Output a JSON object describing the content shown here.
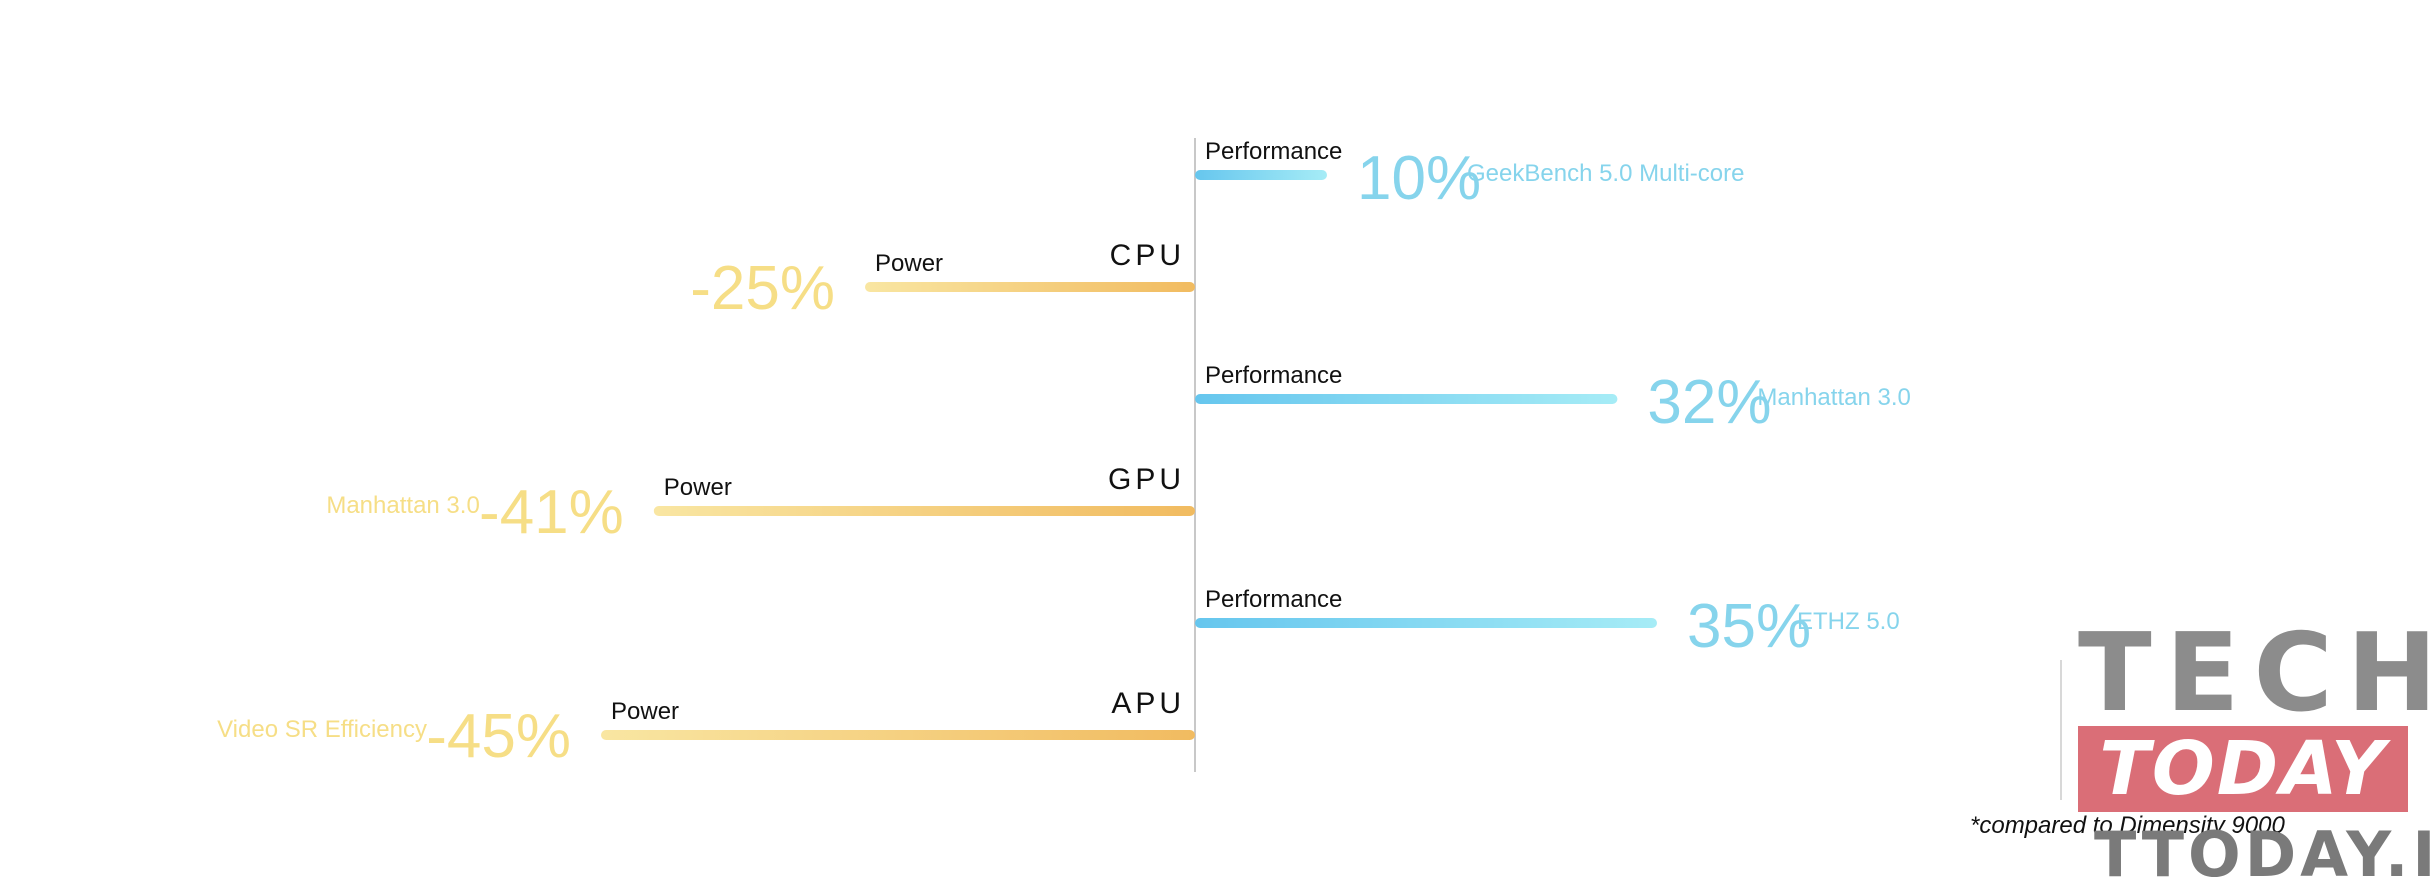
{
  "chart_data": {
    "type": "bar",
    "title": "",
    "colors": {
      "performance_start": "#66c6ee",
      "performance_end": "#a6ecf6",
      "power_start": "#f9e6a2",
      "power_end": "#f1bb60",
      "performance_text": "#86d4ec",
      "power_text": "#f6de86",
      "axis": "#c8c8c8"
    },
    "groups": [
      {
        "category": "CPU",
        "performance": {
          "label": "Performance",
          "value": 10,
          "display": "10%",
          "benchmark": "GeekBench 5.0 Multi-core"
        },
        "power": {
          "label": "Power",
          "value": -25,
          "display": "-25%",
          "benchmark": ""
        }
      },
      {
        "category": "GPU",
        "performance": {
          "label": "Performance",
          "value": 32,
          "display": "32%",
          "benchmark": "Manhattan 3.0"
        },
        "power": {
          "label": "Power",
          "value": -41,
          "display": "-41%",
          "benchmark": "Manhattan 3.0"
        }
      },
      {
        "category": "APU",
        "performance": {
          "label": "Performance",
          "value": 35,
          "display": "35%",
          "benchmark": "ETHZ 5.0"
        },
        "power": {
          "label": "Power",
          "value": -45,
          "display": "-45%",
          "benchmark": "Video SR Efficiency"
        }
      }
    ]
  },
  "footnote": "*compared to Dimensity 9000",
  "watermark": {
    "line1": "TECH",
    "line2": "TODAY",
    "line3": "TTODAY.IT"
  }
}
